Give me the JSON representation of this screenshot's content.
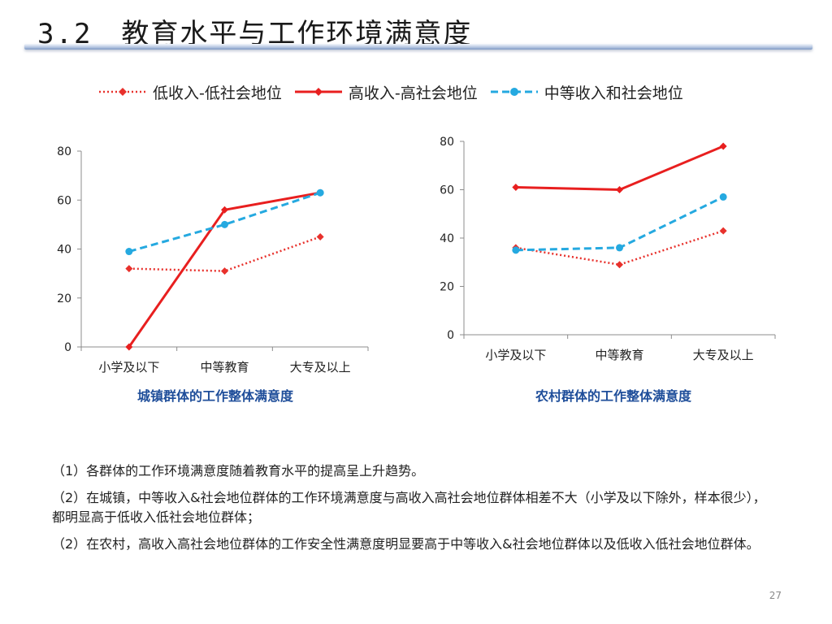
{
  "slide": {
    "title": "3.2　教育水平与工作环境满意度",
    "page_number": "27"
  },
  "legend": [
    {
      "label": "低收入-低社会地位",
      "color": "#e8312c",
      "style": "dotted",
      "marker": "diamond"
    },
    {
      "label": "高收入-高社会地位",
      "color": "#e81f1f",
      "style": "solid",
      "marker": "diamond"
    },
    {
      "label": "中等收入和社会地位",
      "color": "#25a9e0",
      "style": "dashed",
      "marker": "circle"
    }
  ],
  "chart_data": [
    {
      "type": "line",
      "title": "城镇群体的工作整体满意度",
      "categories": [
        "小学及以下",
        "中等教育",
        "大专及以上"
      ],
      "ylim": [
        0,
        80
      ],
      "yticks": [
        0,
        20,
        40,
        60,
        80
      ],
      "series": [
        {
          "name": "低收入-低社会地位",
          "values": [
            32,
            31,
            45
          ]
        },
        {
          "name": "高收入-高社会地位",
          "values": [
            0,
            56,
            63
          ]
        },
        {
          "name": "中等收入和社会地位",
          "values": [
            39,
            50,
            63
          ]
        }
      ],
      "grid": false,
      "legend": "top"
    },
    {
      "type": "line",
      "title": "农村群体的工作整体满意度",
      "categories": [
        "小学及以下",
        "中等教育",
        "大专及以上"
      ],
      "ylim": [
        0,
        80
      ],
      "yticks": [
        0,
        20,
        40,
        60,
        80
      ],
      "series": [
        {
          "name": "低收入-低社会地位",
          "values": [
            36,
            29,
            43
          ]
        },
        {
          "name": "高收入-高社会地位",
          "values": [
            61,
            60,
            78
          ]
        },
        {
          "name": "中等收入和社会地位",
          "values": [
            35,
            36,
            57
          ]
        }
      ],
      "grid": false,
      "legend": "top"
    }
  ],
  "notes": [
    "（1）各群体的工作环境满意度随着教育水平的提高呈上升趋势。",
    "（2）在城镇，中等收入&社会地位群体的工作环境满意度与高收入高社会地位群体相差不大（小学及以下除外，样本很少），都明显高于低收入低社会地位群体；",
    "（2）在农村，高收入高社会地位群体的工作安全性满意度明显要高于中等收入&社会地位群体以及低收入低社会地位群体。"
  ]
}
